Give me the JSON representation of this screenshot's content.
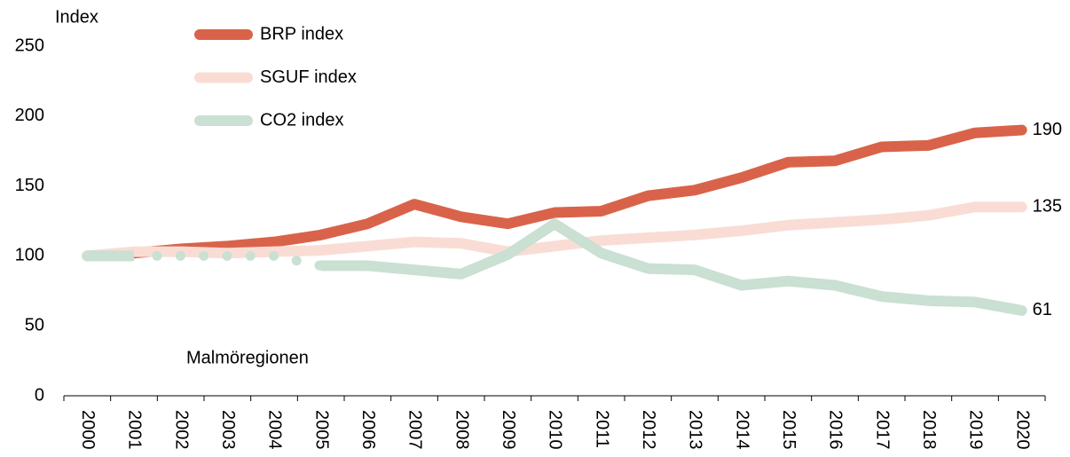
{
  "chart_data": {
    "type": "line",
    "y_axis_label": "Index",
    "annotation": "Malmöregionen",
    "categories": [
      "2000",
      "2001",
      "2002",
      "2003",
      "2004",
      "2005",
      "2006",
      "2007",
      "2008",
      "2009",
      "2010",
      "2011",
      "2012",
      "2013",
      "2014",
      "2015",
      "2016",
      "2017",
      "2018",
      "2019",
      "2020"
    ],
    "series": [
      {
        "name": "BRP index",
        "color": "#d9634a",
        "values": [
          100,
          102,
          105,
          107,
          110,
          115,
          123,
          137,
          128,
          123,
          131,
          132,
          143,
          147,
          156,
          167,
          168,
          178,
          179,
          188,
          190
        ]
      },
      {
        "name": "SGUF index",
        "color": "#f9ddd4",
        "values": [
          100,
          103,
          103,
          102,
          103,
          104,
          107,
          110,
          109,
          103,
          107,
          111,
          113,
          115,
          118,
          122,
          124,
          126,
          129,
          135,
          135
        ]
      },
      {
        "name": "CO2 index",
        "color": "#c9e0d3",
        "dotted_range": [
          "2001",
          "2005"
        ],
        "values": [
          100,
          100,
          100,
          100,
          100,
          93,
          93,
          90,
          87,
          101,
          123,
          102,
          91,
          90,
          79,
          82,
          79,
          71,
          68,
          67,
          61
        ]
      }
    ],
    "ylim": [
      0,
      250
    ],
    "yticks": [
      0,
      50,
      100,
      150,
      200,
      250
    ]
  }
}
